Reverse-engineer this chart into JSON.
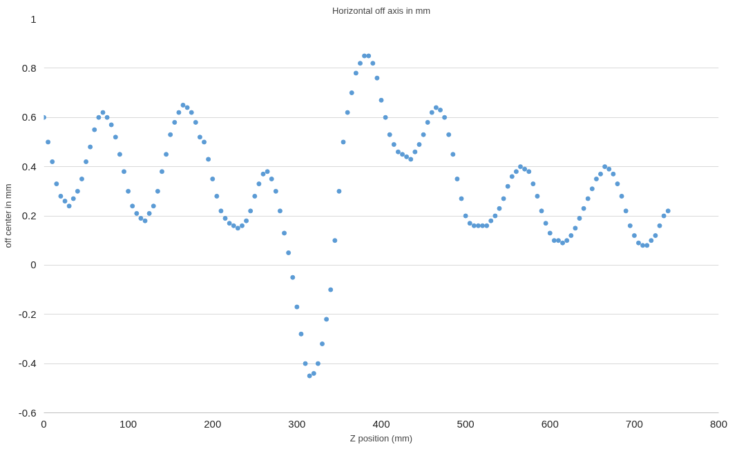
{
  "chart_data": {
    "type": "scatter",
    "title": "Horizontal off axis in mm",
    "xlabel": "Z position (mm)",
    "ylabel": "off center in mm",
    "xlim": [
      0,
      800
    ],
    "xticks": [
      0,
      100,
      200,
      300,
      400,
      500,
      600,
      700,
      800
    ],
    "ylim": [
      -0.6,
      1
    ],
    "yticks": [
      -0.6,
      -0.4,
      -0.2,
      0,
      0.2,
      0.4,
      0.6,
      0.8,
      1
    ],
    "grid": "y",
    "marker": "circle",
    "series": [
      {
        "color": "#5b9bd5",
        "x": [
          0,
          5,
          10,
          15,
          20,
          25,
          30,
          35,
          40,
          45,
          50,
          55,
          60,
          65,
          70,
          75,
          80,
          85,
          90,
          95,
          100,
          105,
          110,
          115,
          120,
          125,
          130,
          135,
          140,
          145,
          150,
          155,
          160,
          165,
          170,
          175,
          180,
          185,
          190,
          195,
          200,
          205,
          210,
          215,
          220,
          225,
          230,
          235,
          240,
          245,
          250,
          255,
          260,
          265,
          270,
          275,
          280,
          285,
          290,
          295,
          300,
          305,
          310,
          315,
          320,
          325,
          330,
          335,
          340,
          345,
          350,
          355,
          360,
          365,
          370,
          375,
          380,
          385,
          390,
          395,
          400,
          405,
          410,
          415,
          420,
          425,
          430,
          435,
          440,
          445,
          450,
          455,
          460,
          465,
          470,
          475,
          480,
          485,
          490,
          495,
          500,
          505,
          510,
          515,
          520,
          525,
          530,
          535,
          540,
          545,
          550,
          555,
          560,
          565,
          570,
          575,
          580,
          585,
          590,
          595,
          600,
          605,
          610,
          615,
          620,
          625,
          630,
          635,
          640,
          645,
          650,
          655,
          660,
          665,
          670,
          675,
          680,
          685,
          690,
          695,
          700,
          705,
          710,
          715,
          720,
          725,
          730,
          735,
          740
        ],
        "values": [
          0.6,
          0.5,
          0.42,
          0.33,
          0.28,
          0.26,
          0.24,
          0.27,
          0.3,
          0.35,
          0.42,
          0.48,
          0.55,
          0.6,
          0.62,
          0.6,
          0.57,
          0.52,
          0.45,
          0.38,
          0.3,
          0.24,
          0.21,
          0.19,
          0.18,
          0.21,
          0.24,
          0.3,
          0.38,
          0.45,
          0.53,
          0.58,
          0.62,
          0.65,
          0.64,
          0.62,
          0.58,
          0.52,
          0.5,
          0.43,
          0.35,
          0.28,
          0.22,
          0.19,
          0.17,
          0.16,
          0.15,
          0.16,
          0.18,
          0.22,
          0.28,
          0.33,
          0.37,
          0.38,
          0.35,
          0.3,
          0.22,
          0.13,
          0.05,
          -0.05,
          -0.17,
          -0.28,
          -0.4,
          -0.45,
          -0.44,
          -0.4,
          -0.32,
          -0.22,
          -0.1,
          0.1,
          0.3,
          0.5,
          0.62,
          0.7,
          0.78,
          0.82,
          0.85,
          0.85,
          0.82,
          0.76,
          0.67,
          0.6,
          0.53,
          0.49,
          0.46,
          0.45,
          0.44,
          0.43,
          0.46,
          0.49,
          0.53,
          0.58,
          0.62,
          0.64,
          0.63,
          0.6,
          0.53,
          0.45,
          0.35,
          0.27,
          0.2,
          0.17,
          0.16,
          0.16,
          0.16,
          0.16,
          0.18,
          0.2,
          0.23,
          0.27,
          0.32,
          0.36,
          0.38,
          0.4,
          0.39,
          0.38,
          0.33,
          0.28,
          0.22,
          0.17,
          0.13,
          0.1,
          0.1,
          0.09,
          0.1,
          0.12,
          0.15,
          0.19,
          0.23,
          0.27,
          0.31,
          0.35,
          0.37,
          0.4,
          0.39,
          0.37,
          0.33,
          0.28,
          0.22,
          0.16,
          0.12,
          0.09,
          0.08,
          0.08,
          0.1,
          0.12,
          0.16,
          0.2,
          0.22
        ]
      }
    ]
  }
}
